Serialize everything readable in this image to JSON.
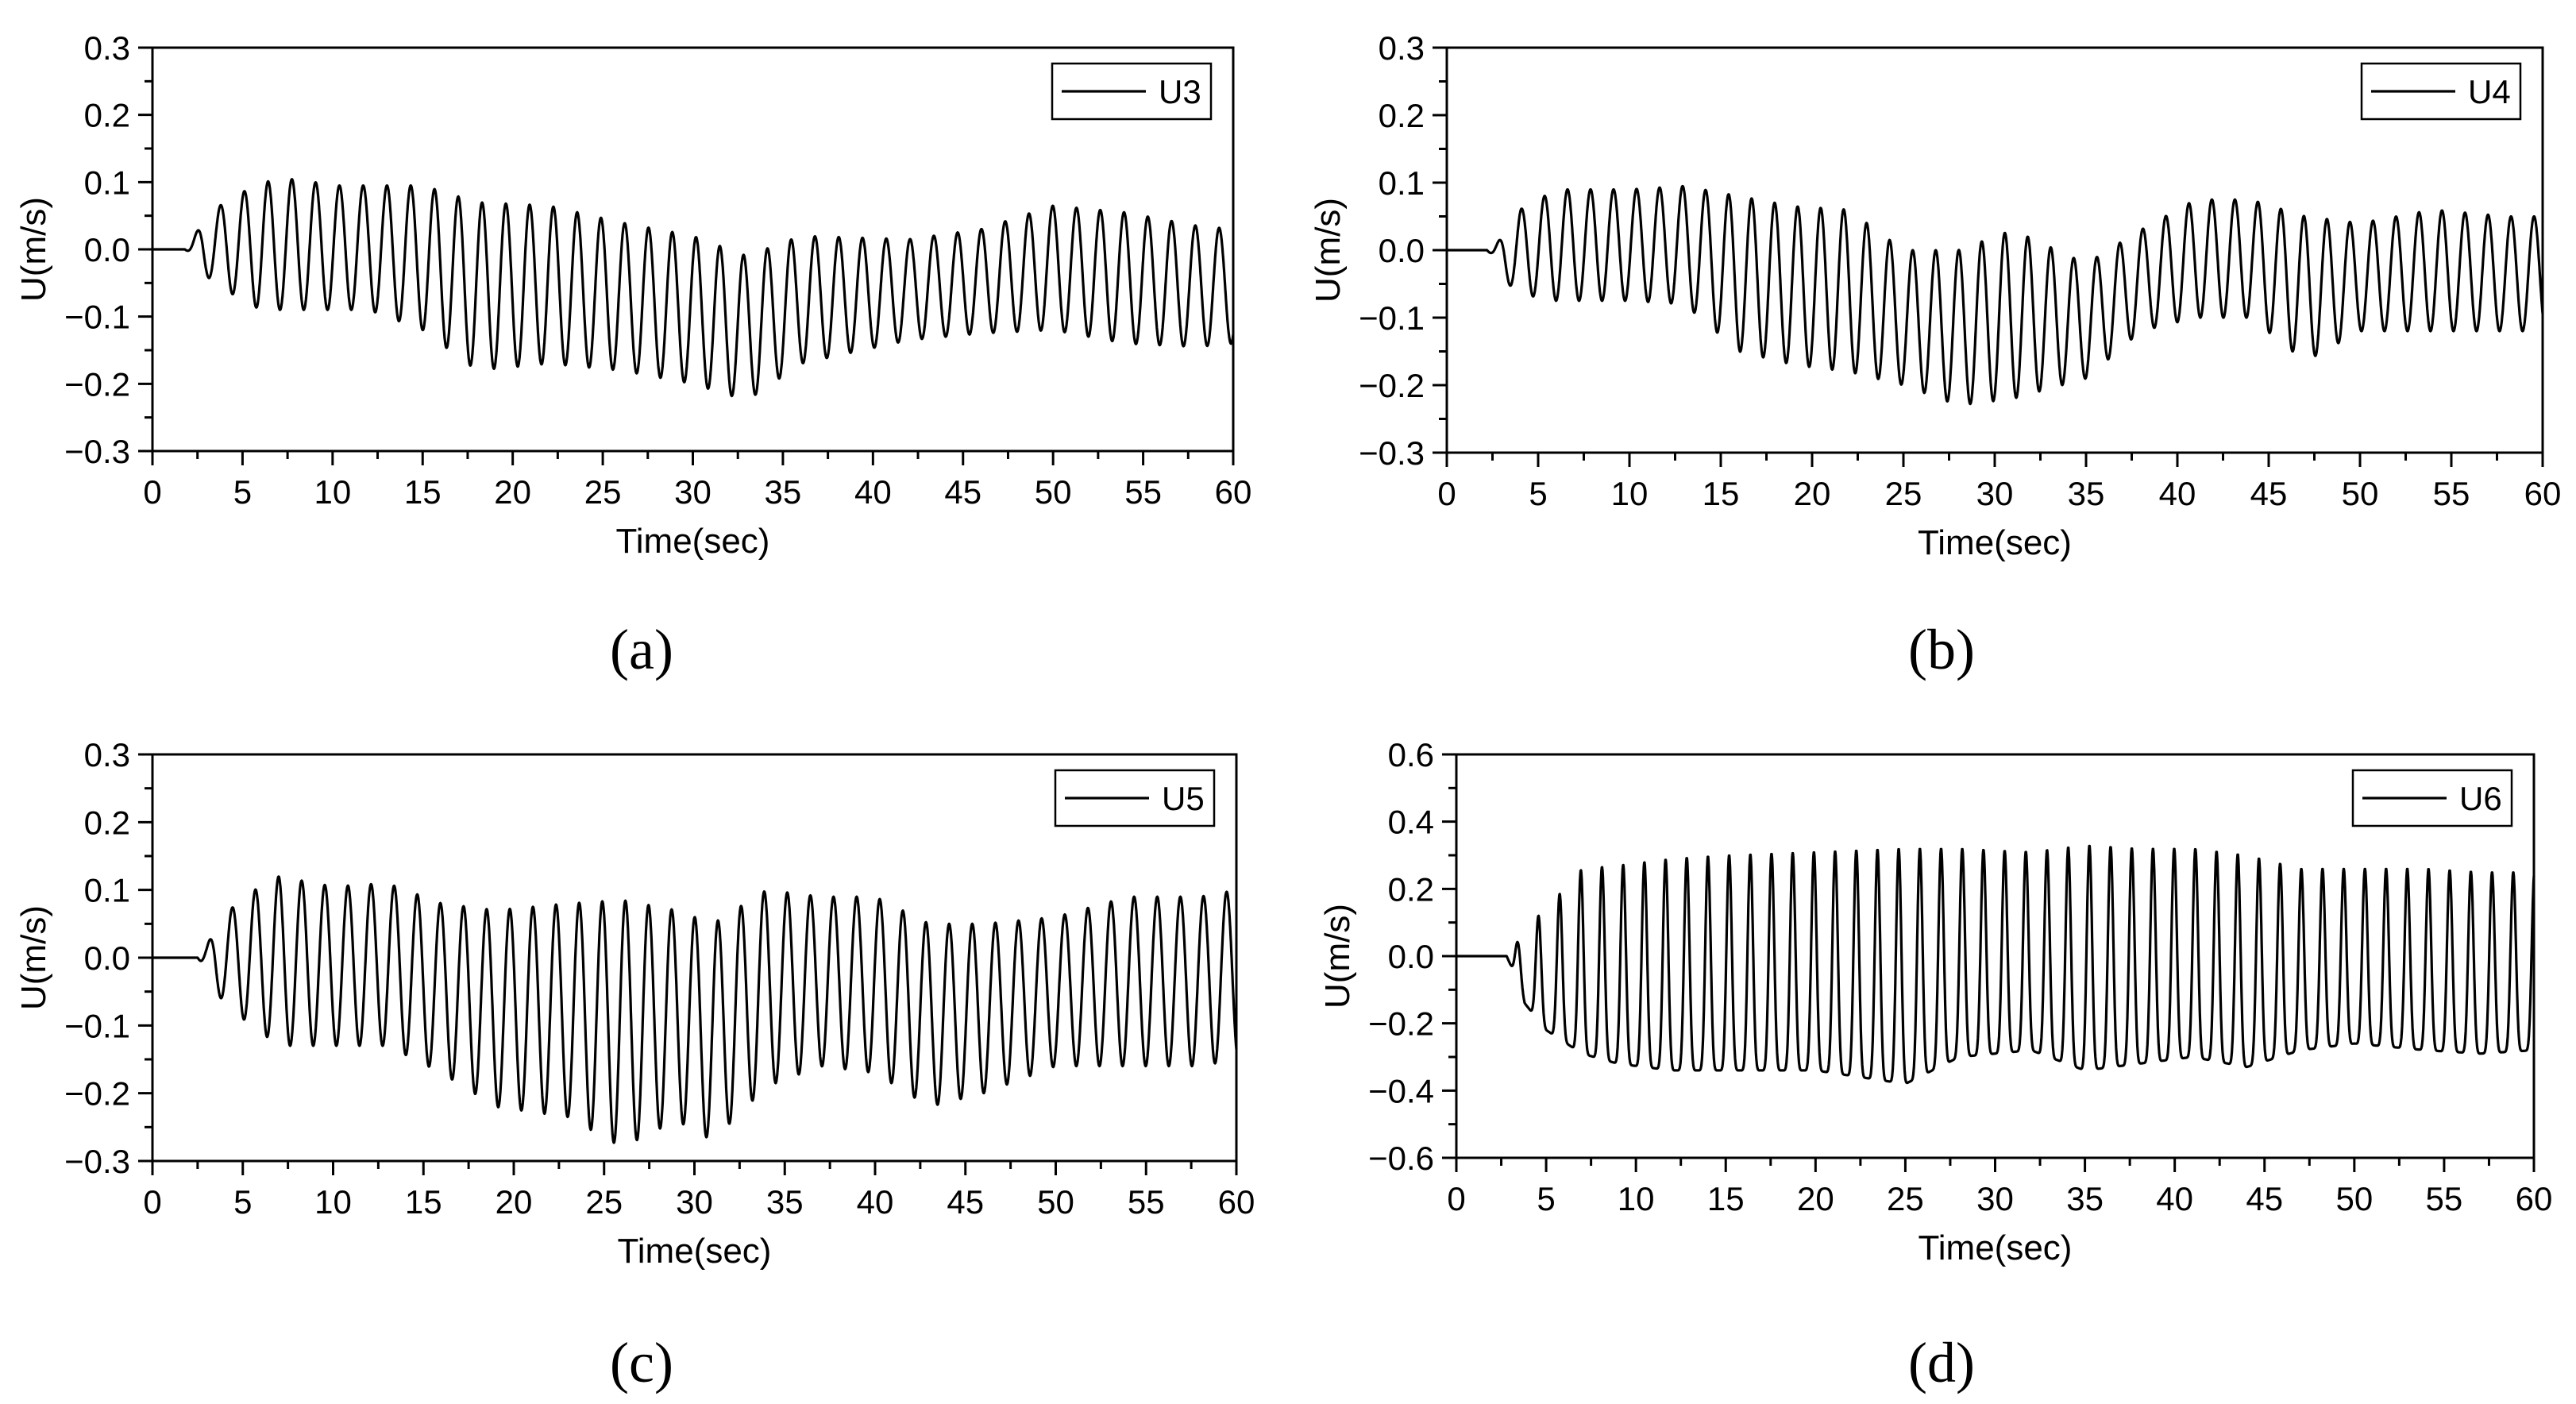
{
  "figure": {
    "captions": [
      "(a)",
      "(b)",
      "(c)",
      "(d)"
    ]
  },
  "chart_data": [
    {
      "id": "a",
      "type": "line",
      "caption": "(a)",
      "title": "",
      "xlabel": "Time(sec)",
      "ylabel": "U(m/s)",
      "xlim": [
        0,
        60
      ],
      "ylim": [
        -0.3,
        0.3
      ],
      "xticks": [
        "0",
        "5",
        "10",
        "15",
        "20",
        "25",
        "30",
        "35",
        "40",
        "45",
        "50",
        "55",
        "60"
      ],
      "yticks": [
        "−0.3",
        "−0.2",
        "−0.1",
        "0.0",
        "0.1",
        "0.2",
        "0.3"
      ],
      "legend": "top-right",
      "series": [
        {
          "name": "U3",
          "onset_time": 1.8,
          "period": 1.32,
          "peak_shape": 0,
          "envelope": {
            "t": [
              2,
              4,
              6,
              8,
              10,
              12,
              15,
              18,
              22,
              26,
              30,
              33,
              36,
              42,
              46,
              50,
              54,
              58,
              60
            ],
            "max": [
              0.03,
              0.07,
              0.1,
              0.105,
              0.095,
              0.095,
              0.095,
              0.07,
              0.065,
              0.04,
              0.02,
              -0.01,
              0.02,
              0.015,
              0.03,
              0.065,
              0.055,
              0.035,
              0.03
            ],
            "min": [
              -0.02,
              -0.06,
              -0.09,
              -0.09,
              -0.09,
              -0.09,
              -0.12,
              -0.18,
              -0.17,
              -0.18,
              -0.2,
              -0.225,
              -0.17,
              -0.135,
              -0.125,
              -0.12,
              -0.14,
              -0.145,
              -0.14
            ]
          }
        }
      ]
    },
    {
      "id": "b",
      "type": "line",
      "caption": "(b)",
      "title": "",
      "xlabel": "Time(sec)",
      "ylabel": "U(m/s)",
      "xlim": [
        0,
        60
      ],
      "ylim": [
        -0.3,
        0.3
      ],
      "xticks": [
        "0",
        "5",
        "10",
        "15",
        "20",
        "25",
        "30",
        "35",
        "40",
        "45",
        "50",
        "55",
        "60"
      ],
      "yticks": [
        "−0.3",
        "−0.2",
        "−0.1",
        "0.0",
        "0.1",
        "0.2",
        "0.3"
      ],
      "legend": "top-right",
      "series": [
        {
          "name": "U4",
          "onset_time": 2.2,
          "period": 1.26,
          "peak_shape": 0,
          "envelope": {
            "t": [
              2.5,
              4,
              6,
              8,
              10,
              13,
              16,
              19,
              22,
              25,
              28,
              31,
              35,
              38,
              41,
              44,
              47,
              50,
              54,
              58,
              60
            ],
            "max": [
              0.01,
              0.06,
              0.09,
              0.09,
              0.09,
              0.095,
              0.08,
              0.065,
              0.06,
              0.0,
              0.0,
              0.03,
              -0.02,
              0.03,
              0.075,
              0.075,
              0.05,
              0.04,
              0.06,
              0.05,
              0.05
            ],
            "min": [
              -0.03,
              -0.065,
              -0.075,
              -0.075,
              -0.075,
              -0.08,
              -0.15,
              -0.17,
              -0.18,
              -0.2,
              -0.23,
              -0.22,
              -0.19,
              -0.12,
              -0.1,
              -0.1,
              -0.165,
              -0.12,
              -0.12,
              -0.12,
              -0.12
            ]
          }
        }
      ]
    },
    {
      "id": "c",
      "type": "line",
      "caption": "(c)",
      "title": "",
      "xlabel": "Time(sec)",
      "ylabel": "U(m/s)",
      "xlim": [
        0,
        60
      ],
      "ylim": [
        -0.3,
        0.3
      ],
      "xticks": [
        "0",
        "5",
        "10",
        "15",
        "20",
        "25",
        "30",
        "35",
        "40",
        "45",
        "50",
        "55",
        "60"
      ],
      "yticks": [
        "−0.3",
        "−0.2",
        "−0.1",
        "0.0",
        "0.1",
        "0.2",
        "0.3"
      ],
      "legend": "top-right",
      "series": [
        {
          "name": "U5",
          "onset_time": 2.5,
          "period": 1.28,
          "peak_shape": 0,
          "envelope": {
            "t": [
              3,
              5,
              7,
              10,
              13,
              16,
              19,
              23,
              26,
              29,
              31,
              34,
              37,
              40,
              43,
              46,
              50,
              54,
              58,
              60
            ],
            "max": [
              0.035,
              0.09,
              0.12,
              0.105,
              0.11,
              0.08,
              0.07,
              0.08,
              0.085,
              0.07,
              0.05,
              0.1,
              0.09,
              0.09,
              0.05,
              0.05,
              0.06,
              0.09,
              0.09,
              0.1
            ],
            "min": [
              -0.04,
              -0.09,
              -0.13,
              -0.13,
              -0.13,
              -0.17,
              -0.22,
              -0.235,
              -0.28,
              -0.24,
              -0.27,
              -0.19,
              -0.16,
              -0.17,
              -0.22,
              -0.2,
              -0.16,
              -0.16,
              -0.16,
              -0.15
            ]
          }
        }
      ]
    },
    {
      "id": "d",
      "type": "line",
      "caption": "(d)",
      "title": "",
      "xlabel": "Time(sec)",
      "ylabel": "U(m/s)",
      "xlim": [
        0,
        60
      ],
      "ylim": [
        -0.6,
        0.6
      ],
      "xticks": [
        "0",
        "5",
        "10",
        "15",
        "20",
        "25",
        "30",
        "35",
        "40",
        "45",
        "50",
        "55",
        "60"
      ],
      "yticks": [
        "−0.6",
        "−0.4",
        "−0.2",
        "0.0",
        "0.2",
        "0.4",
        "0.6"
      ],
      "legend": "top-right",
      "series": [
        {
          "name": "U6",
          "onset_time": 2.8,
          "period": 1.18,
          "peak_shape": 1,
          "envelope": {
            "t": [
              3.5,
              5,
              7,
              9,
              12,
              15,
              20,
              25,
              28,
              32,
              35,
              38,
              41,
              44,
              47,
              50,
              54,
              57,
              60
            ],
            "max": [
              0.07,
              0.14,
              0.26,
              0.27,
              0.29,
              0.3,
              0.31,
              0.32,
              0.32,
              0.31,
              0.33,
              0.32,
              0.32,
              0.3,
              0.26,
              0.26,
              0.26,
              0.25,
              0.25
            ],
            "min": [
              -0.12,
              -0.22,
              -0.29,
              -0.32,
              -0.34,
              -0.34,
              -0.34,
              -0.38,
              -0.3,
              -0.28,
              -0.34,
              -0.32,
              -0.3,
              -0.33,
              -0.28,
              -0.26,
              -0.28,
              -0.29,
              -0.28
            ]
          }
        }
      ]
    }
  ]
}
